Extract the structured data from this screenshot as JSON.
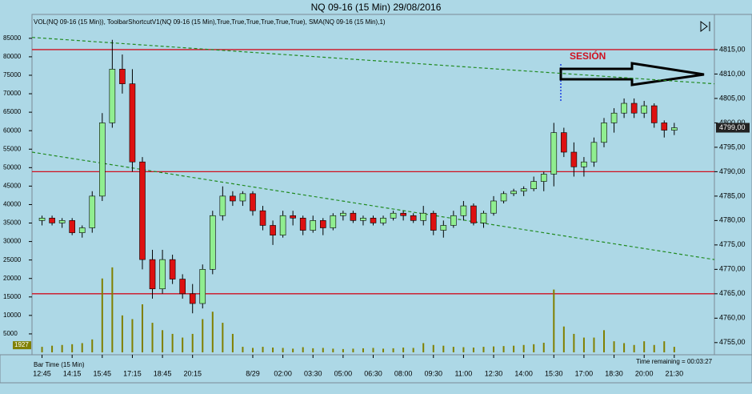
{
  "chart_data": {
    "type": "candlestick",
    "title": "NQ 09-16 (15 Min)  29/08/2016",
    "indicator_label": "VOL(NQ 09-16 (15 Min)), ToolbarShortcutV1(NQ 09-16 (15 Min),True,True,True,True,True,True), SMA(NQ 09-16 (15 Min),1)",
    "bottom_label": "Bar Time (15 Min)",
    "time_remaining": "Time remaining = 00:03:27",
    "annotation": "SESIÓN",
    "categories": [
      "12:45",
      null,
      null,
      "14:15",
      null,
      null,
      "15:45",
      null,
      null,
      "17:15",
      null,
      null,
      "18:45",
      null,
      null,
      "20:15",
      null,
      null,
      null,
      null,
      null,
      "8/29",
      null,
      null,
      "02:00",
      null,
      null,
      "03:30",
      null,
      null,
      "05:00",
      null,
      null,
      "06:30",
      null,
      null,
      "08:00",
      null,
      null,
      "09:30",
      null,
      null,
      "11:00",
      null,
      null,
      "12:30",
      null,
      null,
      "14:00",
      null,
      null,
      "15:30",
      null,
      null,
      "17:00",
      null,
      null,
      "18:30",
      null,
      null,
      "20:00",
      null,
      null,
      "21:30"
    ],
    "open": [
      4780,
      4780.5,
      4779.5,
      4780,
      4777.5,
      4778.5,
      4785,
      4800,
      4811,
      4808,
      4792,
      4772,
      4766,
      4772,
      4768,
      4765,
      4763,
      4770,
      4781,
      4785,
      4784,
      4785.5,
      4782,
      4779,
      4777,
      4781,
      4780.5,
      4778,
      4780,
      4778.5,
      4781,
      4781.5,
      4780,
      4780.5,
      4779.5,
      4780.5,
      4781.5,
      4781,
      4780,
      4781.5,
      4778,
      4779,
      4781,
      4783,
      4779.5,
      4781.5,
      4784,
      4785.5,
      4786,
      4786.5,
      4788,
      4789.5,
      4798,
      4794,
      4791,
      4792,
      4796,
      4800,
      4802,
      4804,
      4802,
      4803.5,
      4800,
      4798.5
    ],
    "high": [
      4781,
      4781,
      4780.5,
      4780.5,
      4779,
      4786,
      4802,
      4817,
      4814,
      4811,
      4793,
      4774,
      4774,
      4773,
      4769,
      4767,
      4771,
      4782,
      4787,
      4786,
      4786,
      4786,
      4783,
      4780,
      4782,
      4782,
      4781,
      4781,
      4780.5,
      4781.5,
      4782,
      4782,
      4781,
      4781,
      4781,
      4782,
      4782,
      4781.5,
      4783,
      4782,
      4780,
      4782,
      4784,
      4783.5,
      4782,
      4785,
      4786,
      4786.5,
      4787,
      4789,
      4790,
      4800,
      4799,
      4796,
      4793,
      4797,
      4801,
      4803,
      4805,
      4805,
      4804.5,
      4804,
      4800.5,
      4800
    ],
    "low": [
      4779,
      4779,
      4778.5,
      4777,
      4776.5,
      4777.5,
      4784,
      4799,
      4806,
      4790,
      4770,
      4764,
      4765,
      4767,
      4764,
      4761,
      4762,
      4769,
      4780,
      4783,
      4783,
      4781,
      4778,
      4775,
      4776.5,
      4779,
      4777,
      4777.5,
      4777,
      4778,
      4780,
      4779.5,
      4779,
      4779,
      4779,
      4780,
      4780,
      4779.5,
      4779,
      4777,
      4776.5,
      4778.5,
      4780,
      4779,
      4778.5,
      4781,
      4783.5,
      4785,
      4785,
      4786,
      4786,
      4787,
      4793,
      4789,
      4789,
      4791,
      4795,
      4798,
      4801,
      4801,
      4801,
      4799,
      4797,
      4797.5
    ],
    "close": [
      4780.5,
      4779.5,
      4780,
      4777.5,
      4778.5,
      4785,
      4800,
      4811,
      4808,
      4792,
      4772,
      4766,
      4772,
      4768,
      4765,
      4763,
      4770,
      4781,
      4785,
      4784,
      4785.5,
      4782,
      4779,
      4777,
      4781,
      4780.5,
      4778,
      4780,
      4778.5,
      4781,
      4781.5,
      4780,
      4780.5,
      4779.5,
      4780.5,
      4781.5,
      4781,
      4780,
      4781.5,
      4778,
      4779,
      4781,
      4783,
      4779.5,
      4781.5,
      4784,
      4785.5,
      4786,
      4786.5,
      4788,
      4789.5,
      4798,
      4794,
      4791,
      4792,
      4796,
      4800,
      4802,
      4804,
      4802,
      4803.5,
      4800,
      4798.5,
      4799
    ],
    "volume": [
      1500,
      1800,
      2000,
      2200,
      2500,
      3500,
      20000,
      23000,
      10000,
      9000,
      13000,
      8000,
      6000,
      5000,
      4000,
      5000,
      9000,
      11000,
      8000,
      5000,
      1500,
      1200,
      1500,
      1300,
      1200,
      1000,
      1400,
      1100,
      1200,
      1000,
      900,
      1000,
      1100,
      1200,
      1000,
      1100,
      1300,
      1200,
      2500,
      2000,
      1800,
      1500,
      1400,
      1300,
      1500,
      1600,
      1700,
      1800,
      2000,
      2200,
      2600,
      17000,
      7000,
      5000,
      4000,
      4000,
      6000,
      3000,
      2500,
      2000,
      3000,
      2000,
      3000,
      1500
    ],
    "up_color": "#90ee90",
    "down_color": "#dd1111",
    "volume_color": "#808000",
    "current_volume_label": {
      "value": 1927,
      "label": "1927"
    },
    "last_price": {
      "value": 4799,
      "label": "4799,00"
    },
    "levels": [
      4815,
      4790,
      4765
    ],
    "level_color": "#d01020",
    "trendlines": [
      {
        "x": [
          -1,
          67
        ],
        "y": [
          4817.5,
          4808
        ]
      },
      {
        "x": [
          -1,
          67
        ],
        "y": [
          4794,
          4772
        ]
      }
    ],
    "trend_color": "#228b22",
    "xlim": [
      -1,
      67
    ],
    "ylim": [
      4753,
      4818.6
    ],
    "yticks": [
      {
        "value": 4755,
        "label": "4755,00"
      },
      {
        "value": 4760,
        "label": "4760,00"
      },
      {
        "value": 4765,
        "label": "4765,00"
      },
      {
        "value": 4770,
        "label": "4770,00"
      },
      {
        "value": 4775,
        "label": "4775,00"
      },
      {
        "value": 4780,
        "label": "4780,00"
      },
      {
        "value": 4785,
        "label": "4785,00"
      },
      {
        "value": 4790,
        "label": "4790,00"
      },
      {
        "value": 4795,
        "label": "4795,00"
      },
      {
        "value": 4800,
        "label": "4800,00"
      },
      {
        "value": 4805,
        "label": "4805,00"
      },
      {
        "value": 4810,
        "label": "4810,00"
      },
      {
        "value": 4815,
        "label": "4815,00"
      }
    ],
    "y2lim": [
      0,
      86700
    ],
    "y2ticks": [
      5000,
      10000,
      15000,
      20000,
      25000,
      30000,
      35000,
      40000,
      45000,
      50000,
      55000,
      60000,
      65000,
      70000,
      75000,
      80000,
      85000
    ]
  }
}
